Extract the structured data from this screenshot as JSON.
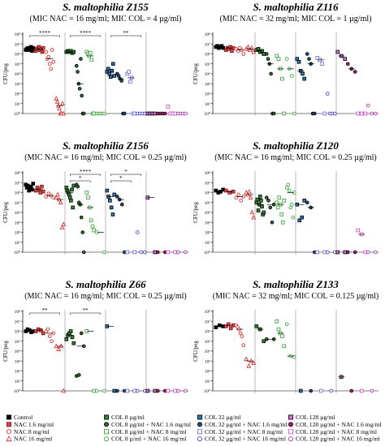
{
  "chart_data": {
    "type": "scatter",
    "legend_placement": "bottom",
    "legend": [
      {
        "label": "Control",
        "color": "#000000",
        "shape": "square",
        "fill": true,
        "border": "#000000"
      },
      {
        "label": "NAC 1.6 mg/ml",
        "color": "#d44a4a",
        "shape": "square",
        "fill": true,
        "border": "#7a1010"
      },
      {
        "label": "NAC 8 mg/ml",
        "color": "#d42020",
        "shape": "circle",
        "fill": false,
        "border": "#d42020"
      },
      {
        "label": "NAC 16 mg/ml",
        "color": "#d42020",
        "shape": "triangle",
        "fill": false,
        "border": "#d42020"
      },
      {
        "label": "COL 8 µg/ml",
        "color": "#2e8b2e",
        "shape": "square",
        "fill": true,
        "border": "#000000"
      },
      {
        "label": "COL 8 µg/ml + NAC 1.6 mg/ml",
        "color": "#2e6b2e",
        "shape": "circle",
        "fill": true,
        "border": "#000000"
      },
      {
        "label": "COL 8 µg/ml + NAC 8 mg/ml",
        "color": "#2ea02e",
        "shape": "square",
        "fill": false,
        "border": "#2ea02e"
      },
      {
        "label": "COL 8 µ/ml + NAC 16 mg/ml",
        "color": "#2ea02e",
        "shape": "circle",
        "fill": false,
        "border": "#2ea02e"
      },
      {
        "label": "COL 32 µg/ml",
        "color": "#2f77b5",
        "shape": "square",
        "fill": true,
        "border": "#000000"
      },
      {
        "label": "COL 32 µg/ml + NAC 1.6 mg/ml",
        "color": "#1f4f80",
        "shape": "circle",
        "fill": true,
        "border": "#000000"
      },
      {
        "label": "COL 32 µg/ml + NAC 8 mg/ml",
        "color": "#6666dd",
        "shape": "square",
        "fill": false,
        "border": "#6666dd"
      },
      {
        "label": "COL 32 µg/ml + NAC 16 mg/ml",
        "color": "#3333cc",
        "shape": "circle",
        "fill": false,
        "border": "#3333cc"
      },
      {
        "label": "COL 128 µg/ml",
        "color": "#d873d8",
        "shape": "square",
        "fill": true,
        "border": "#000000"
      },
      {
        "label": "COL 128 µg/ml + NAC 1.6 mg/ml",
        "color": "#b01a7a",
        "shape": "circle",
        "fill": true,
        "border": "#000000"
      },
      {
        "label": "COL 128 µg/ml + NAC 8 mg/ml",
        "color": "#cc44cc",
        "shape": "square",
        "fill": false,
        "border": "#cc44cc"
      },
      {
        "label": "COL 128 µg/ml + NAC 16 mg/ml",
        "color": "#aa22aa",
        "shape": "circle",
        "fill": false,
        "border": "#aa22aa"
      }
    ],
    "panels": [
      {
        "title": "S. maltophilia Z155",
        "subtitle": "(MIC NAC = 16 mg/ml; MIC COL = 4 µg/ml)",
        "ylabel": "CFU/peg",
        "yscale": "log",
        "ylim": [
          0,
          8
        ],
        "yticks": [
          "10⁰",
          "10¹",
          "10²",
          "10³",
          "10⁴",
          "10⁵",
          "10⁶",
          "10⁷",
          "10⁸"
        ],
        "groups": [
          [
            6.4,
            6.5,
            6.6,
            6.4,
            6.5,
            6.7,
            6.3,
            6.6
          ],
          [
            6.3,
            6.5,
            6.6,
            6.7,
            6.4,
            6.5,
            6.2,
            6.6
          ],
          [
            6.2,
            5.5,
            5.7,
            5.0,
            4.5,
            6.4,
            5.2
          ],
          [
            1.5,
            1.2,
            0.8,
            0.5,
            0,
            0,
            1.0,
            0
          ],
          [
            6.2,
            6.3,
            6.2,
            6.3,
            6.1,
            6.2
          ],
          [
            4.8,
            4.2,
            3.0,
            2.5,
            5.5,
            1.8,
            0,
            0
          ],
          [
            6.2,
            6.0,
            5.8,
            6.1,
            5.4,
            0,
            0
          ],
          [
            0,
            0,
            0,
            0,
            0
          ],
          [
            4.2,
            4.5,
            4.0,
            3.7,
            4.3,
            5.0,
            3.8
          ],
          [
            4.0,
            3.8,
            3.5,
            3.3,
            0,
            0
          ],
          [
            4.0,
            4.2,
            3.2,
            3.6,
            0,
            0
          ],
          [
            0,
            0,
            0,
            0
          ],
          [
            0,
            0,
            0,
            0
          ],
          [
            0,
            0,
            0,
            0
          ],
          [
            0.7,
            0,
            0,
            0
          ],
          [
            0,
            0,
            0,
            0
          ]
        ],
        "brackets": [
          {
            "from": 0,
            "to": 3,
            "label": "****"
          },
          {
            "from": 4,
            "to": 7,
            "label": "****"
          },
          {
            "from": 8,
            "to": 11,
            "label": "**"
          }
        ]
      },
      {
        "title": "S. maltophilia Z116",
        "subtitle": "(MIC NAC = 32 mg/ml; MIC COL = 1 µg/ml)",
        "ylabel": "CFU/peg",
        "yscale": "log",
        "ylim": [
          0,
          8
        ],
        "yticks": [
          "10⁰",
          "10¹",
          "10²",
          "10³",
          "10⁴",
          "10⁵",
          "10⁶",
          "10⁷",
          "10⁸"
        ],
        "groups": [
          [
            6.7,
            6.8,
            6.6,
            6.7,
            6.8,
            6.6
          ],
          [
            6.4,
            6.6,
            6.5,
            6.7,
            6.3,
            6.6
          ],
          [
            6.5,
            6.3,
            6.6,
            6.4,
            6.0
          ],
          [
            6.5,
            6.7,
            6.4,
            6.6,
            6.2
          ],
          [
            6.4,
            6.5,
            6.2,
            6.3,
            6.0
          ],
          [
            6.0,
            5.5,
            5.0,
            4.0,
            0,
            0
          ],
          [
            5.8,
            5.5,
            4.5,
            3.5,
            0
          ],
          [
            5.5,
            4.5,
            3.8,
            0
          ],
          [
            5.5,
            5.2,
            4.3,
            4.0,
            3.5
          ],
          [
            6.0,
            5.5,
            5.0,
            0,
            0
          ],
          [
            5.6,
            5.4,
            5.0,
            0
          ],
          [
            2.0,
            0,
            0,
            0
          ],
          [
            6.2,
            5.8,
            5.5
          ],
          [
            5.0,
            4.5,
            4.2
          ],
          [
            0,
            0,
            0
          ],
          [
            0.8,
            0,
            0
          ]
        ],
        "brackets": []
      },
      {
        "title": "S. maltophilia Z156",
        "subtitle": "(MIC NAC = 16 mg/ml; MIC COL = 0.25 µg/ml)",
        "ylabel": "CFU/peg",
        "yscale": "log",
        "ylim": [
          0,
          8
        ],
        "yticks": [
          "10⁰",
          "10¹",
          "10²",
          "10³",
          "10⁴",
          "10⁵",
          "10⁶",
          "10⁷",
          "10⁸"
        ],
        "groups": [
          [
            6.8,
            6.5,
            6.7,
            6.2,
            6.4,
            6.6,
            6.3,
            6.9
          ],
          [
            6.2,
            6.5,
            6.3,
            6.0,
            6.6,
            6.1
          ],
          [
            5.6,
            5.9,
            5.7,
            5.5
          ],
          [
            5.5,
            5.8,
            5.3,
            5.0,
            2.5,
            2.8
          ],
          [
            6.5,
            6.2,
            6.0,
            5.8,
            5.5,
            5.2,
            6.3,
            4.5,
            6.7
          ],
          [
            6.8,
            6.6,
            5.0,
            4.8,
            3.5,
            2.0,
            0
          ],
          [
            6.0,
            5.5,
            4.5,
            3.2,
            2.6,
            2.2
          ],
          [
            2.0,
            0
          ],
          [
            6.2,
            5.6,
            5.2,
            4.5,
            3.8,
            5.8
          ],
          [
            5.6,
            5.3,
            4.8,
            0
          ],
          [
            0,
            0
          ],
          [
            2.0,
            0,
            0
          ],
          [
            5.5,
            0
          ],
          [
            0,
            0
          ],
          [
            0,
            0
          ],
          [
            0,
            0
          ]
        ],
        "brackets": [
          {
            "from": 4,
            "to": 7,
            "label": "****"
          },
          {
            "from": 4,
            "to": 6,
            "label": "*"
          },
          {
            "from": 8,
            "to": 11,
            "label": "*"
          },
          {
            "from": 8,
            "to": 10,
            "label": "*"
          }
        ]
      },
      {
        "title": "S. maltophilia Z120",
        "subtitle": "(MIC NAC = 16 mg/ml; MIC COL = 0.25 µg/ml)",
        "ylabel": "CFU/peg",
        "yscale": "log",
        "ylim": [
          0,
          8
        ],
        "yticks": [
          "10⁰",
          "10¹",
          "10²",
          "10³",
          "10⁴",
          "10⁵",
          "10⁶",
          "10⁷",
          "10⁸"
        ],
        "groups": [
          [
            6.2,
            6.0,
            6.1,
            6.3
          ],
          [
            6.2,
            6.0,
            6.1
          ],
          [
            5.5,
            5.8,
            5.2,
            5.6
          ],
          [
            6.0,
            5.8,
            6.1,
            5.5,
            4.0,
            3.5
          ],
          [
            5.0,
            5.3,
            4.2,
            4.8,
            5.6,
            5.2,
            4.6,
            3.8,
            4.0
          ],
          [
            5.5,
            5.2,
            4.5,
            3.0,
            4.8
          ],
          [
            5.0,
            4.5,
            5.5,
            4.8,
            3.8,
            3.0,
            5.2
          ],
          [
            6.5,
            6.8,
            6.2,
            4.5,
            4.8,
            3.5,
            6.0
          ],
          [
            4.8,
            3.2,
            3.5,
            5.2
          ],
          [
            5.0,
            4.5,
            0
          ],
          [
            0,
            0
          ],
          [
            0,
            0
          ],
          [
            0,
            0
          ],
          [
            0,
            0
          ],
          [
            2.2,
            1.8,
            0
          ],
          [
            0,
            0
          ]
        ],
        "brackets": []
      },
      {
        "title": "S. maltophilia Z66",
        "subtitle": "(MIC NAC = 16 mg/ml; MIC COL = 0.25 µg/ml)",
        "ylabel": "CFU/peg",
        "yscale": "log",
        "ylim": [
          0,
          8
        ],
        "yticks": [
          "10⁰",
          "10¹",
          "10²",
          "10³",
          "10⁴",
          "10⁵",
          "10⁶",
          "10⁷",
          "10⁸"
        ],
        "groups": [
          [
            6.0,
            6.2,
            6.1,
            5.9,
            6.0
          ],
          [
            6.0,
            6.2,
            6.1,
            5.8
          ],
          [
            6.0,
            6.2,
            5.5,
            5.0,
            5.8
          ],
          [
            4.5,
            4.2,
            4.5,
            0
          ],
          [
            5.2,
            5.6,
            5.8,
            6.0,
            5.4,
            4.8
          ],
          [
            1.5,
            1.6,
            5.8,
            4.5
          ],
          [
            6.0,
            0
          ],
          [
            0,
            0
          ],
          [
            6.5,
            0
          ],
          [
            0,
            0
          ],
          [
            0,
            0
          ],
          [
            0,
            0
          ],
          [
            0,
            0
          ],
          [
            0,
            0
          ],
          [
            0,
            0
          ],
          [
            0,
            0
          ]
        ],
        "brackets": [
          {
            "from": 0,
            "to": 3,
            "label": "**"
          },
          {
            "from": 4,
            "to": 7,
            "label": "**"
          }
        ]
      },
      {
        "title": "S. maltophilia Z133",
        "subtitle": "(MIC NAC = 32 mg/ml; MIC COL = 0.125 µg/ml)",
        "ylabel": "CFU/peg",
        "yscale": "log",
        "ylim": [
          0,
          8
        ],
        "yticks": [
          "10⁰",
          "10¹",
          "10²",
          "10³",
          "10⁴",
          "10⁵",
          "10⁶",
          "10⁷",
          "10⁸"
        ],
        "groups": [
          [
            6.4,
            6.6,
            6.5
          ],
          [
            6.5,
            6.7,
            6.3,
            6.6
          ],
          [
            6.6,
            6.4,
            6.2,
            5.8,
            5.5,
            4.6
          ],
          [
            3.2,
            2.5,
            3.0,
            2.8
          ],
          [
            6.5,
            6.2,
            5.0
          ],
          [
            5.2,
            5.2
          ],
          [
            7.0,
            6.2,
            5.8,
            5.5,
            4.5
          ],
          [
            6.7,
            3.5,
            3.4
          ],
          [
            0
          ],
          [
            0
          ],
          [
            0
          ],
          [
            0
          ],
          [
            1.4
          ],
          [
            0
          ],
          [
            0
          ],
          [
            0
          ]
        ],
        "brackets": []
      }
    ]
  }
}
